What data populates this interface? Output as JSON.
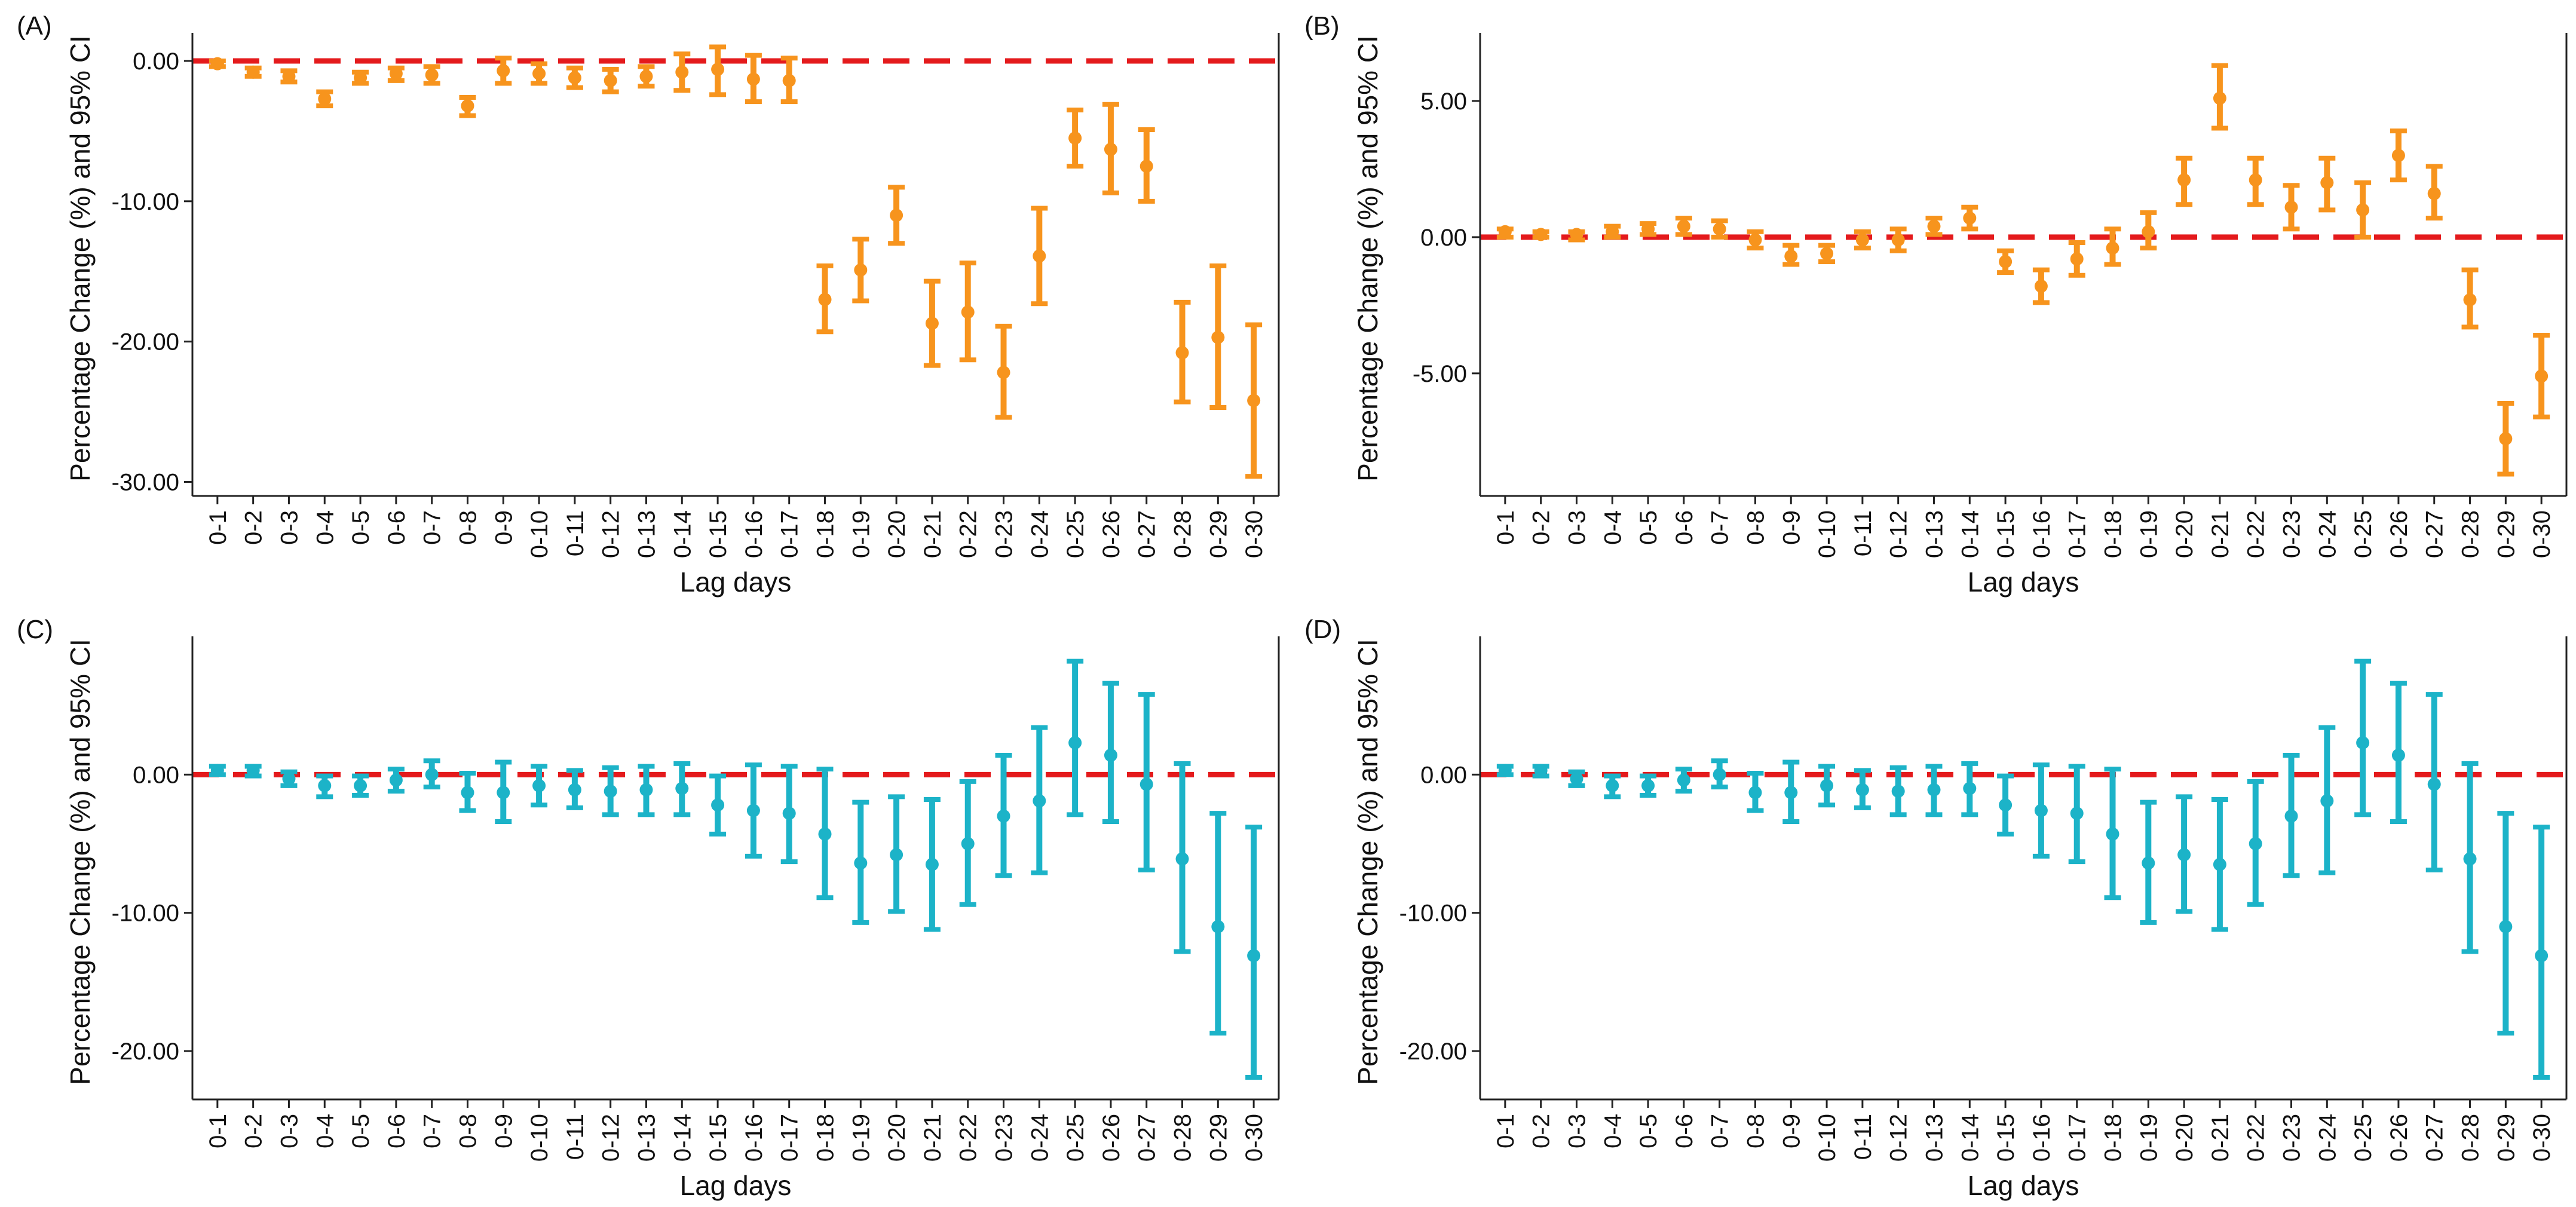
{
  "colors": {
    "orange": "#F7941D",
    "teal": "#1CB3C8",
    "reference_line": "#E41A1C",
    "axis": "#222222"
  },
  "chart_data": [
    {
      "type": "errorbar",
      "panel_label": "(A)",
      "ylabel": "Percentage Change (%) and 95% CI",
      "xlabel": "Lag days",
      "color": "orange",
      "ylim": [
        -31,
        2
      ],
      "yticks": [
        0,
        -10,
        -20,
        -30
      ],
      "ytick_labels": [
        "0.00",
        "-10.00",
        "-20.00",
        "-30.00"
      ],
      "reference_line": 0,
      "grid": false,
      "categories": [
        "0-1",
        "0-2",
        "0-3",
        "0-4",
        "0-5",
        "0-6",
        "0-7",
        "0-8",
        "0-9",
        "0-10",
        "0-11",
        "0-12",
        "0-13",
        "0-14",
        "0-15",
        "0-16",
        "0-17",
        "0-18",
        "0-19",
        "0-20",
        "0-21",
        "0-22",
        "0-23",
        "0-24",
        "0-25",
        "0-26",
        "0-27",
        "0-28",
        "0-29",
        "0-30"
      ],
      "estimate": [
        -0.2,
        -0.8,
        -1.1,
        -2.7,
        -1.2,
        -0.9,
        -1.0,
        -3.2,
        -0.7,
        -0.9,
        -1.2,
        -1.4,
        -1.1,
        -0.8,
        -0.6,
        -1.3,
        -1.4,
        -17.0,
        -14.9,
        -11.0,
        -18.7,
        -17.9,
        -22.2,
        -13.9,
        -5.5,
        -6.3,
        -7.5,
        -20.8,
        -19.7,
        -24.2
      ],
      "lower": [
        -0.4,
        -1.1,
        -1.5,
        -3.2,
        -1.6,
        -1.4,
        -1.6,
        -3.9,
        -1.6,
        -1.6,
        -1.9,
        -2.2,
        -1.8,
        -2.1,
        -2.4,
        -2.9,
        -2.9,
        -19.3,
        -17.1,
        -13.0,
        -21.7,
        -21.3,
        -25.4,
        -17.3,
        -7.5,
        -9.4,
        -10.0,
        -24.3,
        -24.7,
        -29.6
      ],
      "upper": [
        0.0,
        -0.5,
        -0.7,
        -2.2,
        -0.8,
        -0.5,
        -0.4,
        -2.6,
        0.2,
        -0.2,
        -0.5,
        -0.6,
        -0.4,
        0.5,
        1.0,
        0.4,
        0.2,
        -14.6,
        -12.7,
        -9.0,
        -15.7,
        -14.4,
        -18.9,
        -10.5,
        -3.5,
        -3.1,
        -4.9,
        -17.2,
        -14.6,
        -18.8
      ]
    },
    {
      "type": "errorbar",
      "panel_label": "(B)",
      "ylabel": "Percentage Change (%) and 95% CI",
      "xlabel": "Lag days",
      "color": "orange",
      "ylim": [
        -9.5,
        7.5
      ],
      "yticks": [
        5,
        0,
        -5
      ],
      "ytick_labels": [
        "5.00",
        "0.00",
        "-5.00"
      ],
      "reference_line": 0,
      "grid": false,
      "categories": [
        "0-1",
        "0-2",
        "0-3",
        "0-4",
        "0-5",
        "0-6",
        "0-7",
        "0-8",
        "0-9",
        "0-10",
        "0-11",
        "0-12",
        "0-13",
        "0-14",
        "0-15",
        "0-16",
        "0-17",
        "0-18",
        "0-19",
        "0-20",
        "0-21",
        "0-22",
        "0-23",
        "0-24",
        "0-25",
        "0-26",
        "0-27",
        "0-28",
        "0-29",
        "0-30"
      ],
      "estimate": [
        0.2,
        0.1,
        0.1,
        0.2,
        0.3,
        0.4,
        0.3,
        -0.1,
        -0.7,
        -0.6,
        -0.1,
        -0.1,
        0.4,
        0.7,
        -0.9,
        -1.8,
        -0.8,
        -0.4,
        0.2,
        2.1,
        5.1,
        2.1,
        1.1,
        2.0,
        1.0,
        3.0,
        1.6,
        -2.3,
        -7.4,
        -5.1
      ],
      "lower": [
        0.0,
        0.0,
        -0.1,
        0.0,
        0.1,
        0.1,
        0.0,
        -0.4,
        -1.0,
        -0.9,
        -0.4,
        -0.5,
        0.1,
        0.3,
        -1.3,
        -2.4,
        -1.4,
        -1.0,
        -0.4,
        1.2,
        4.0,
        1.2,
        0.3,
        1.0,
        0.0,
        2.1,
        0.7,
        -3.3,
        -8.7,
        -6.6
      ],
      "upper": [
        0.3,
        0.2,
        0.2,
        0.4,
        0.5,
        0.7,
        0.6,
        0.2,
        -0.3,
        -0.3,
        0.2,
        0.3,
        0.7,
        1.1,
        -0.5,
        -1.2,
        -0.2,
        0.3,
        0.9,
        2.9,
        6.3,
        2.9,
        1.9,
        2.9,
        2.0,
        3.9,
        2.6,
        -1.2,
        -6.1,
        -3.6
      ]
    },
    {
      "type": "errorbar",
      "panel_label": "(C)",
      "ylabel": "Percentage Change (%) and 95% CI",
      "xlabel": "Lag days",
      "color": "teal",
      "ylim": [
        -23.5,
        10
      ],
      "yticks": [
        0,
        -10,
        -20
      ],
      "ytick_labels": [
        "0.00",
        "-10.00",
        "-20.00"
      ],
      "reference_line": 0,
      "grid": false,
      "categories": [
        "0-1",
        "0-2",
        "0-3",
        "0-4",
        "0-5",
        "0-6",
        "0-7",
        "0-8",
        "0-9",
        "0-10",
        "0-11",
        "0-12",
        "0-13",
        "0-14",
        "0-15",
        "0-16",
        "0-17",
        "0-18",
        "0-19",
        "0-20",
        "0-21",
        "0-22",
        "0-23",
        "0-24",
        "0-25",
        "0-26",
        "0-27",
        "0-28",
        "0-29",
        "0-30"
      ],
      "estimate": [
        0.3,
        0.3,
        -0.3,
        -0.8,
        -0.8,
        -0.4,
        0.0,
        -1.3,
        -1.3,
        -0.8,
        -1.1,
        -1.2,
        -1.1,
        -1.0,
        -2.2,
        -2.6,
        -2.8,
        -4.3,
        -6.4,
        -5.8,
        -6.5,
        -5.0,
        -3.0,
        -1.9,
        2.3,
        1.4,
        -0.7,
        -6.1,
        -11.0,
        -13.1
      ],
      "lower": [
        0.0,
        -0.1,
        -0.8,
        -1.6,
        -1.5,
        -1.2,
        -0.9,
        -2.6,
        -3.4,
        -2.2,
        -2.4,
        -2.9,
        -2.9,
        -2.9,
        -4.3,
        -5.9,
        -6.3,
        -8.9,
        -10.7,
        -9.9,
        -11.2,
        -9.4,
        -7.3,
        -7.1,
        -2.9,
        -3.4,
        -6.9,
        -12.8,
        -18.7,
        -21.9
      ],
      "upper": [
        0.6,
        0.6,
        0.2,
        -0.1,
        -0.1,
        0.4,
        1.0,
        0.1,
        0.9,
        0.6,
        0.3,
        0.5,
        0.6,
        0.8,
        -0.1,
        0.7,
        0.6,
        0.4,
        -2.0,
        -1.6,
        -1.8,
        -0.5,
        1.4,
        3.4,
        8.2,
        6.6,
        5.8,
        0.8,
        -2.8,
        -3.8
      ]
    },
    {
      "type": "errorbar",
      "panel_label": "(D)",
      "ylabel": "Percentage Change (%) and 95% CI",
      "xlabel": "Lag days",
      "color": "teal",
      "ylim": [
        -23.5,
        10
      ],
      "yticks": [
        0,
        -10,
        -20
      ],
      "ytick_labels": [
        "0.00",
        "-10.00",
        "-20.00"
      ],
      "reference_line": 0,
      "grid": false,
      "categories": [
        "0-1",
        "0-2",
        "0-3",
        "0-4",
        "0-5",
        "0-6",
        "0-7",
        "0-8",
        "0-9",
        "0-10",
        "0-11",
        "0-12",
        "0-13",
        "0-14",
        "0-15",
        "0-16",
        "0-17",
        "0-18",
        "0-19",
        "0-20",
        "0-21",
        "0-22",
        "0-23",
        "0-24",
        "0-25",
        "0-26",
        "0-27",
        "0-28",
        "0-29",
        "0-30"
      ],
      "estimate": [
        0.3,
        0.3,
        -0.3,
        -0.8,
        -0.8,
        -0.4,
        0.0,
        -1.3,
        -1.3,
        -0.8,
        -1.1,
        -1.2,
        -1.1,
        -1.0,
        -2.2,
        -2.6,
        -2.8,
        -4.3,
        -6.4,
        -5.8,
        -6.5,
        -5.0,
        -3.0,
        -1.9,
        2.3,
        1.4,
        -0.7,
        -6.1,
        -11.0,
        -13.1
      ],
      "lower": [
        0.0,
        -0.1,
        -0.8,
        -1.6,
        -1.5,
        -1.2,
        -0.9,
        -2.6,
        -3.4,
        -2.2,
        -2.4,
        -2.9,
        -2.9,
        -2.9,
        -4.3,
        -5.9,
        -6.3,
        -8.9,
        -10.7,
        -9.9,
        -11.2,
        -9.4,
        -7.3,
        -7.1,
        -2.9,
        -3.4,
        -6.9,
        -12.8,
        -18.7,
        -21.9
      ],
      "upper": [
        0.6,
        0.6,
        0.2,
        -0.1,
        -0.1,
        0.4,
        1.0,
        0.1,
        0.9,
        0.6,
        0.3,
        0.5,
        0.6,
        0.8,
        -0.1,
        0.7,
        0.6,
        0.4,
        -2.0,
        -1.6,
        -1.8,
        -0.5,
        1.4,
        3.4,
        8.2,
        6.6,
        5.8,
        0.8,
        -2.8,
        -3.8
      ]
    }
  ]
}
